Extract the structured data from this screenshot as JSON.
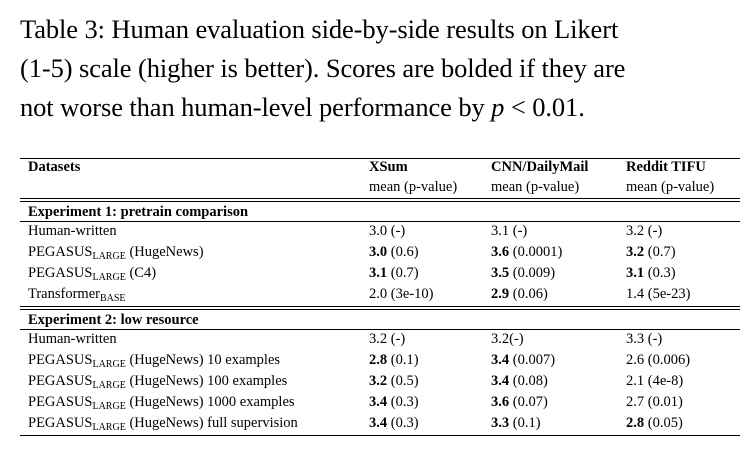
{
  "caption": {
    "line1": "Table 3: Human evaluation side-by-side results on Likert",
    "line2": "(1-5) scale (higher is better). Scores are bolded if they are",
    "line3_prefix": "not worse than human-level performance by ",
    "line3_var": "p",
    "line3_op": " < ",
    "line3_num": "0.01",
    "line3_suffix": "."
  },
  "table": {
    "headers": {
      "datasets": "Datasets",
      "xsum": "XSum",
      "cnn": "CNN/DailyMail",
      "reddit": "Reddit TIFU",
      "metric": "mean (p-value)"
    },
    "sections": [
      {
        "title": "Experiment 1: pretrain comparison",
        "rows": [
          {
            "name": "Human-written",
            "sub": "",
            "suffix": "",
            "cells": [
              {
                "m": "3.0",
                "p": " (-)",
                "b": false
              },
              {
                "m": "3.1",
                "p": " (-)",
                "b": false
              },
              {
                "m": "3.2",
                "p": " (-)",
                "b": false
              }
            ]
          },
          {
            "name": "PEGASUS",
            "sub": "LARGE",
            "suffix": " (HugeNews)",
            "cells": [
              {
                "m": "3.0",
                "p": " (0.6)",
                "b": true
              },
              {
                "m": "3.6",
                "p": " (0.0001)",
                "b": true
              },
              {
                "m": "3.2",
                "p": " (0.7)",
                "b": true
              }
            ]
          },
          {
            "name": "PEGASUS",
            "sub": "LARGE",
            "suffix": " (C4)",
            "cells": [
              {
                "m": "3.1",
                "p": " (0.7)",
                "b": true
              },
              {
                "m": "3.5",
                "p": " (0.009)",
                "b": true
              },
              {
                "m": "3.1",
                "p": " (0.3)",
                "b": true
              }
            ]
          },
          {
            "name": "Transformer",
            "sub": "BASE",
            "suffix": "",
            "cells": [
              {
                "m": "2.0",
                "p": " (3e-10)",
                "b": false
              },
              {
                "m": "2.9",
                "p": " (0.06)",
                "b": true
              },
              {
                "m": "1.4",
                "p": " (5e-23)",
                "b": false
              }
            ]
          }
        ]
      },
      {
        "title": "Experiment 2: low resource",
        "rows": [
          {
            "name": "Human-written",
            "sub": "",
            "suffix": "",
            "cells": [
              {
                "m": "3.2",
                "p": " (-)",
                "b": false
              },
              {
                "m": "3.2",
                "p": "(-)",
                "b": false
              },
              {
                "m": "3.3",
                "p": " (-)",
                "b": false
              }
            ]
          },
          {
            "name": "PEGASUS",
            "sub": "LARGE",
            "suffix": " (HugeNews) 10 examples",
            "cells": [
              {
                "m": "2.8",
                "p": " (0.1)",
                "b": true
              },
              {
                "m": "3.4",
                "p": " (0.007)",
                "b": true
              },
              {
                "m": "2.6",
                "p": " (0.006)",
                "b": false
              }
            ]
          },
          {
            "name": "PEGASUS",
            "sub": "LARGE",
            "suffix": " (HugeNews) 100 examples",
            "cells": [
              {
                "m": "3.2",
                "p": " (0.5)",
                "b": true
              },
              {
                "m": "3.4",
                "p": " (0.08)",
                "b": true
              },
              {
                "m": "2.1",
                "p": " (4e-8)",
                "b": false
              }
            ]
          },
          {
            "name": "PEGASUS",
            "sub": "LARGE",
            "suffix": " (HugeNews) 1000 examples",
            "cells": [
              {
                "m": "3.4",
                "p": " (0.3)",
                "b": true
              },
              {
                "m": "3.6",
                "p": " (0.07)",
                "b": true
              },
              {
                "m": "2.7",
                "p": " (0.01)",
                "b": false
              }
            ]
          },
          {
            "name": "PEGASUS",
            "sub": "LARGE",
            "suffix": " (HugeNews) full supervision",
            "cells": [
              {
                "m": "3.4",
                "p": " (0.3)",
                "b": true
              },
              {
                "m": "3.3",
                "p": " (0.1)",
                "b": true
              },
              {
                "m": "2.8",
                "p": " (0.05)",
                "b": true
              }
            ]
          }
        ]
      }
    ]
  }
}
